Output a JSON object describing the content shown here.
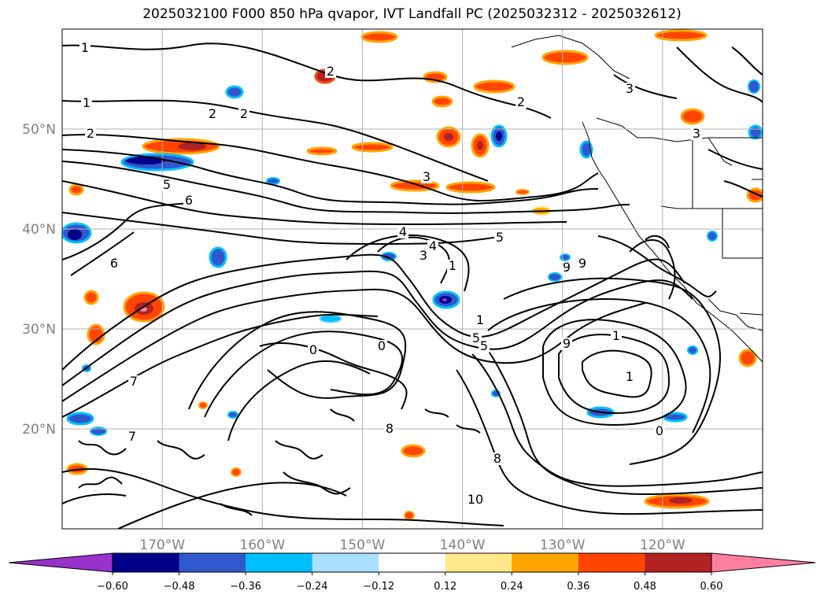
{
  "chart_data": {
    "type": "contour_map",
    "title": "2025032100 F000 850 hPa qvapor, IVT Landfall PC (2025032312 - 2025032612)",
    "lat_ticks": [
      "50°N",
      "40°N",
      "30°N",
      "20°N"
    ],
    "lon_ticks": [
      "170°W",
      "160°W",
      "150°W",
      "140°W",
      "130°W",
      "120°W"
    ],
    "lat_values": [
      50,
      40,
      30,
      20
    ],
    "lon_values": [
      -170,
      -160,
      -150,
      -140,
      -130,
      -120
    ],
    "extent": {
      "lon": [
        -180,
        -110
      ],
      "lat": [
        10,
        60
      ]
    },
    "grid": true,
    "colorbar": {
      "ticks": [
        "−0.60",
        "−0.48",
        "−0.36",
        "−0.24",
        "−0.12",
        "0.12",
        "0.24",
        "0.36",
        "0.48",
        "0.60"
      ],
      "levels": [
        -0.6,
        -0.48,
        -0.36,
        -0.24,
        -0.12,
        0.12,
        0.24,
        0.36,
        0.48,
        0.6
      ],
      "colors": [
        "#9932cc",
        "#00008b",
        "#3157cc",
        "#00bfff",
        "#aadfff",
        "#ffffff",
        "#ffe88c",
        "#ffa500",
        "#ff4500",
        "#b22222",
        "#ff7fa0"
      ],
      "extend": "both"
    },
    "contour_labels": [
      "1",
      "1",
      "2",
      "2",
      "2",
      "2",
      "2",
      "3",
      "3",
      "3",
      "3",
      "4",
      "4",
      "5",
      "5",
      "5",
      "5",
      "6",
      "6",
      "7",
      "7",
      "8",
      "8",
      "9",
      "9",
      "9",
      "0",
      "0",
      "0",
      "1",
      "1",
      "1",
      "1",
      "10"
    ]
  }
}
